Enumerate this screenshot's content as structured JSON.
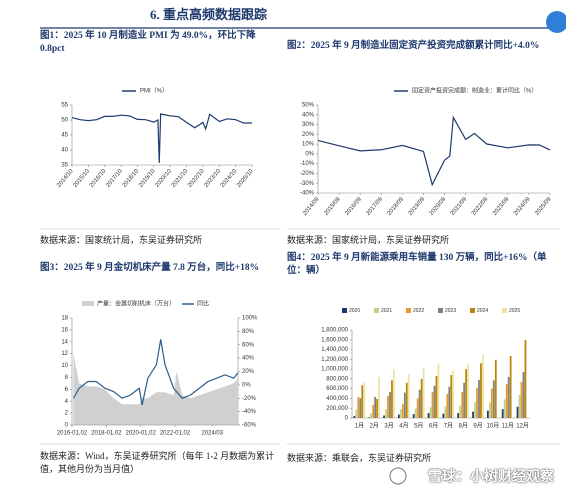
{
  "header": {
    "title": "6. 重点高频数据跟踪"
  },
  "watermark": "雪球：小树财经观察",
  "chart_data": [
    {
      "type": "line",
      "title": "图1：2025 年 10 月制造业 PMI 为 49.0%，环比下降 0.8pct",
      "source": "数据来源：国家统计局，东吴证券研究所",
      "xlim": [
        "2014/10",
        "2025/10"
      ],
      "xticks": [
        "2014/10",
        "2015/10",
        "2016/10",
        "2017/10",
        "2018/10",
        "2019/10",
        "2020/10",
        "2021/10",
        "2022/10",
        "2023/10",
        "2024/10",
        "2025/10"
      ],
      "ylim": [
        35,
        55
      ],
      "yticks": [
        35,
        40,
        45,
        50,
        55
      ],
      "series": [
        {
          "name": "PMI（%）",
          "color": "#1f3a6e",
          "x": [
            "2014/10",
            "2015/04",
            "2015/10",
            "2016/04",
            "2016/10",
            "2017/04",
            "2017/10",
            "2018/04",
            "2018/10",
            "2019/04",
            "2019/10",
            "2020/01",
            "2020/02",
            "2020/03",
            "2020/10",
            "2021/04",
            "2021/10",
            "2022/04",
            "2022/10",
            "2022/12",
            "2023/03",
            "2023/10",
            "2024/04",
            "2024/10",
            "2025/04",
            "2025/10"
          ],
          "values": [
            50.8,
            50.1,
            49.8,
            50.1,
            51.2,
            51.2,
            51.6,
            51.4,
            50.2,
            50.1,
            49.3,
            50.0,
            35.7,
            52.0,
            51.4,
            51.1,
            49.2,
            47.4,
            49.2,
            47.0,
            51.9,
            49.5,
            50.4,
            50.1,
            49.0,
            49.0
          ]
        }
      ]
    },
    {
      "type": "line",
      "title": "图2：2025 年 9 月制造业固定资产投资完成额累计同比+4.0%",
      "source": "数据来源：国家统计局，东吴证券研究所",
      "xlim": [
        "2014/09",
        "2025/09"
      ],
      "xticks": [
        "2014/09",
        "2015/09",
        "2016/09",
        "2017/09",
        "2018/09",
        "2019/09",
        "2020/09",
        "2021/09",
        "2022/09",
        "2023/09",
        "2024/09",
        "2025/09"
      ],
      "ylim": [
        -40,
        50
      ],
      "yticks": [
        {
          "value": -40,
          "label": "-40%"
        },
        {
          "value": -30,
          "label": "-30%"
        },
        {
          "value": -20,
          "label": "-20%"
        },
        {
          "value": -10,
          "label": "-10%"
        },
        {
          "value": 0,
          "label": "0%"
        },
        {
          "value": 10,
          "label": "10%"
        },
        {
          "value": 20,
          "label": "20%"
        },
        {
          "value": 30,
          "label": "30%"
        },
        {
          "value": 40,
          "label": "40%"
        },
        {
          "value": 50,
          "label": "50%"
        }
      ],
      "series": [
        {
          "name": "固定资产投资完成额：制造业：累计同比（%）",
          "color": "#1f3a6e",
          "x": [
            "2014/09",
            "2015/09",
            "2016/09",
            "2017/09",
            "2018/09",
            "2019/09",
            "2020/02",
            "2020/09",
            "2020/12",
            "2021/02",
            "2021/09",
            "2022/02",
            "2022/09",
            "2023/09",
            "2024/09",
            "2025/03",
            "2025/09"
          ],
          "values": [
            13.8,
            8.3,
            3.1,
            4.2,
            8.7,
            2.5,
            -31.5,
            -6.5,
            -2.2,
            37.3,
            14.8,
            20.9,
            10.1,
            6.2,
            9.2,
            9.1,
            4.0
          ]
        }
      ]
    },
    {
      "type": "combo",
      "title": "图3：2025 年 9 月金切机床产量 7.8 万台，同比+18%",
      "source": "数据来源：Wind，东吴证券研究所（每年 1-2 月数据为累计值，其他月份为当月值）",
      "xlim": [
        "2016/01",
        "2025/09"
      ],
      "xticks": [
        "2016-01,02",
        "2018-01,02",
        "2020-01,02",
        "2022-01,02",
        "2024/03"
      ],
      "ylim": [
        0,
        18
      ],
      "yticks": [
        0,
        2,
        4,
        6,
        8,
        10,
        12,
        14,
        16,
        18
      ],
      "y2lim": [
        -60,
        100
      ],
      "y2ticks": [
        {
          "value": -60,
          "label": "-60%"
        },
        {
          "value": -40,
          "label": "-40%"
        },
        {
          "value": -20,
          "label": "-20%"
        },
        {
          "value": 0,
          "label": "0%"
        },
        {
          "value": 20,
          "label": "20%"
        },
        {
          "value": 40,
          "label": "40%"
        },
        {
          "value": 60,
          "label": "60%"
        },
        {
          "value": 80,
          "label": "80%"
        },
        {
          "value": 100,
          "label": "100%"
        }
      ],
      "series": [
        {
          "name": "产量：金属切削机床（万台）",
          "type": "area",
          "color": "#d0d0d0",
          "x": [
            "2016/02",
            "2016/06",
            "2016/12",
            "2017/06",
            "2017/12",
            "2018/06",
            "2018/12",
            "2019/06",
            "2019/12",
            "2020/02",
            "2020/06",
            "2020/12",
            "2021/03",
            "2021/06",
            "2021/12",
            "2022/02",
            "2022/06",
            "2022/12",
            "2023/06",
            "2023/12",
            "2024/06",
            "2024/12",
            "2025/06",
            "2025/09"
          ],
          "values": [
            12,
            7,
            6.5,
            6.5,
            6,
            4.5,
            3.5,
            3.5,
            3.5,
            4.5,
            4.5,
            5.5,
            5.5,
            5.5,
            5,
            9,
            5,
            4.5,
            5,
            5.5,
            6,
            6.5,
            7,
            7.8
          ]
        },
        {
          "name": "同比",
          "type": "line",
          "axis": "y2",
          "color": "#2e5c8a",
          "x": [
            "2016/02",
            "2016/06",
            "2016/12",
            "2017/06",
            "2017/12",
            "2018/06",
            "2018/12",
            "2019/06",
            "2019/12",
            "2020/02",
            "2020/06",
            "2020/12",
            "2021/03",
            "2021/06",
            "2021/12",
            "2022/06",
            "2022/12",
            "2023/06",
            "2023/12",
            "2024/06",
            "2024/12",
            "2025/06",
            "2025/09"
          ],
          "values": [
            -20,
            -5,
            5,
            5,
            -5,
            -10,
            -20,
            -15,
            -5,
            -30,
            10,
            30,
            68,
            30,
            -5,
            -20,
            -15,
            -5,
            5,
            10,
            15,
            10,
            18
          ]
        }
      ]
    },
    {
      "type": "bar",
      "title": "图4：2025 年 9 月新能源乘用车销量 130 万辆，同比+16%（单位：辆）",
      "source": "数据来源：乘联会，东吴证券研究所",
      "categories": [
        "1月",
        "2月",
        "3月",
        "4月",
        "5月",
        "6月",
        "7月",
        "8月",
        "9月",
        "10月",
        "11月",
        "12月"
      ],
      "ylim": [
        0,
        1800000
      ],
      "yticks": [
        0,
        {
          "value": 200000,
          "label": "200,000"
        },
        {
          "value": 400000,
          "label": "400,000"
        },
        {
          "value": 600000,
          "label": "600,000"
        },
        {
          "value": 800000,
          "label": "800,000"
        },
        {
          "value": 1000000,
          "label": "1,000,000"
        },
        {
          "value": 1200000,
          "label": "1,200,000"
        },
        {
          "value": 1400000,
          "label": "1,400,000"
        },
        {
          "value": 1600000,
          "label": "1,600,000"
        },
        {
          "value": 1800000,
          "label": "1,800,000"
        }
      ],
      "series": [
        {
          "name": "2020",
          "color": "#1f3a6e",
          "values": [
            40000,
            12000,
            50000,
            70000,
            80000,
            100000,
            90000,
            100000,
            130000,
            150000,
            180000,
            230000
          ]
        },
        {
          "name": "2021",
          "color": "#b9d48a",
          "values": [
            170000,
            100000,
            180000,
            180000,
            190000,
            220000,
            240000,
            250000,
            330000,
            320000,
            380000,
            470000
          ]
        },
        {
          "name": "2022",
          "color": "#e59a2b",
          "values": [
            430000,
            270000,
            450000,
            280000,
            400000,
            530000,
            490000,
            530000,
            610000,
            600000,
            690000,
            740000
          ]
        },
        {
          "name": "2023",
          "color": "#808080",
          "values": [
            400000,
            430000,
            530000,
            520000,
            580000,
            660000,
            640000,
            720000,
            780000,
            770000,
            840000,
            940000
          ]
        },
        {
          "name": "2024",
          "color": "#b8860b",
          "values": [
            670000,
            390000,
            770000,
            720000,
            800000,
            860000,
            880000,
            1000000,
            1120000,
            1190000,
            1270000,
            1600000
          ]
        },
        {
          "name": "2025",
          "color": "#efe3a6",
          "values": [
            740000,
            840000,
            990000,
            900000,
            1020000,
            1110000,
            990000,
            1110000,
            1300000,
            null,
            null,
            null
          ]
        }
      ]
    }
  ]
}
